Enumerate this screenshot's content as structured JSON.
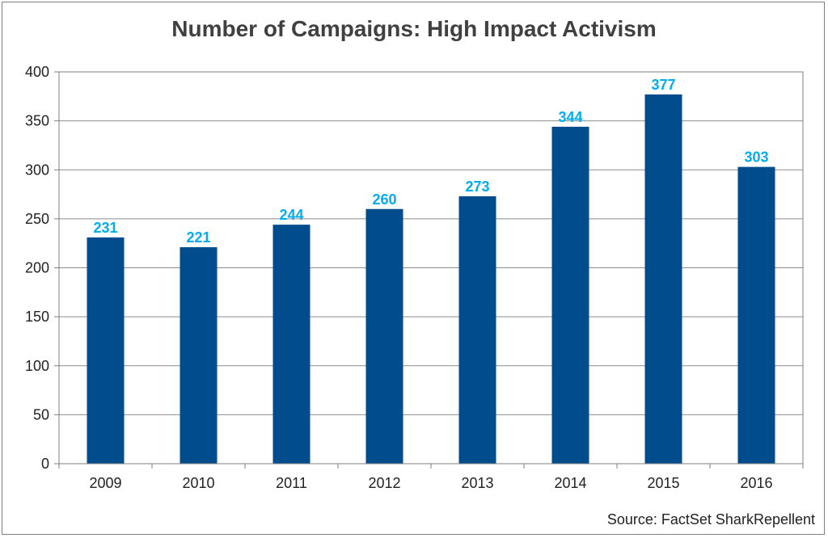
{
  "chart_data": {
    "type": "bar",
    "title": "Number of Campaigns: High Impact Activism",
    "categories": [
      "2009",
      "2010",
      "2011",
      "2012",
      "2013",
      "2014",
      "2015",
      "2016"
    ],
    "values": [
      231,
      221,
      244,
      260,
      273,
      344,
      377,
      303
    ],
    "ylim": [
      0,
      400
    ],
    "yticks": [
      0,
      50,
      100,
      150,
      200,
      250,
      300,
      350,
      400
    ],
    "xlabel": "",
    "ylabel": "",
    "grid": true,
    "bar_color": "#004c8c",
    "label_color": "#00aeef"
  },
  "source": "Source: FactSet SharkRepellent"
}
